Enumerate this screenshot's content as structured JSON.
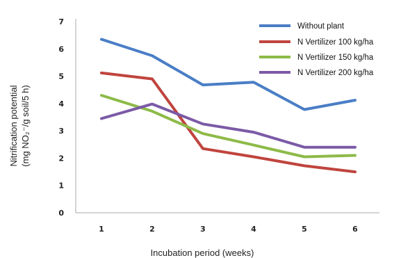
{
  "chart_data": {
    "type": "line",
    "x": [
      1,
      2,
      3,
      4,
      5,
      6
    ],
    "xlabel": "Incubation period (weeks)",
    "ylabel_line1": "Nitrification potential",
    "ylabel_line2": "(mg NO₂⁻/g soil/5 h)",
    "ylim": [
      0,
      7
    ],
    "yticks": [
      0,
      1,
      2,
      3,
      4,
      5,
      6,
      7
    ],
    "grid": false,
    "legend_position": "top-right",
    "series": [
      {
        "name": "Without plant",
        "color": "#4a7ec6",
        "values": [
          6.35,
          5.75,
          4.68,
          4.78,
          3.78,
          4.12
        ]
      },
      {
        "name": "N Vertilizer 100 kg/ha",
        "color": "#c0443e",
        "values": [
          5.12,
          4.9,
          2.35,
          2.05,
          1.72,
          1.5
        ]
      },
      {
        "name": "N Vertilizer 150 kg/ha",
        "color": "#8dba48",
        "values": [
          4.3,
          3.72,
          2.9,
          2.48,
          2.05,
          2.1
        ]
      },
      {
        "name": "N Vertilizer 200 kg/ha",
        "color": "#7b5aa6",
        "values": [
          3.45,
          3.98,
          3.25,
          2.95,
          2.4,
          2.4
        ]
      }
    ]
  }
}
